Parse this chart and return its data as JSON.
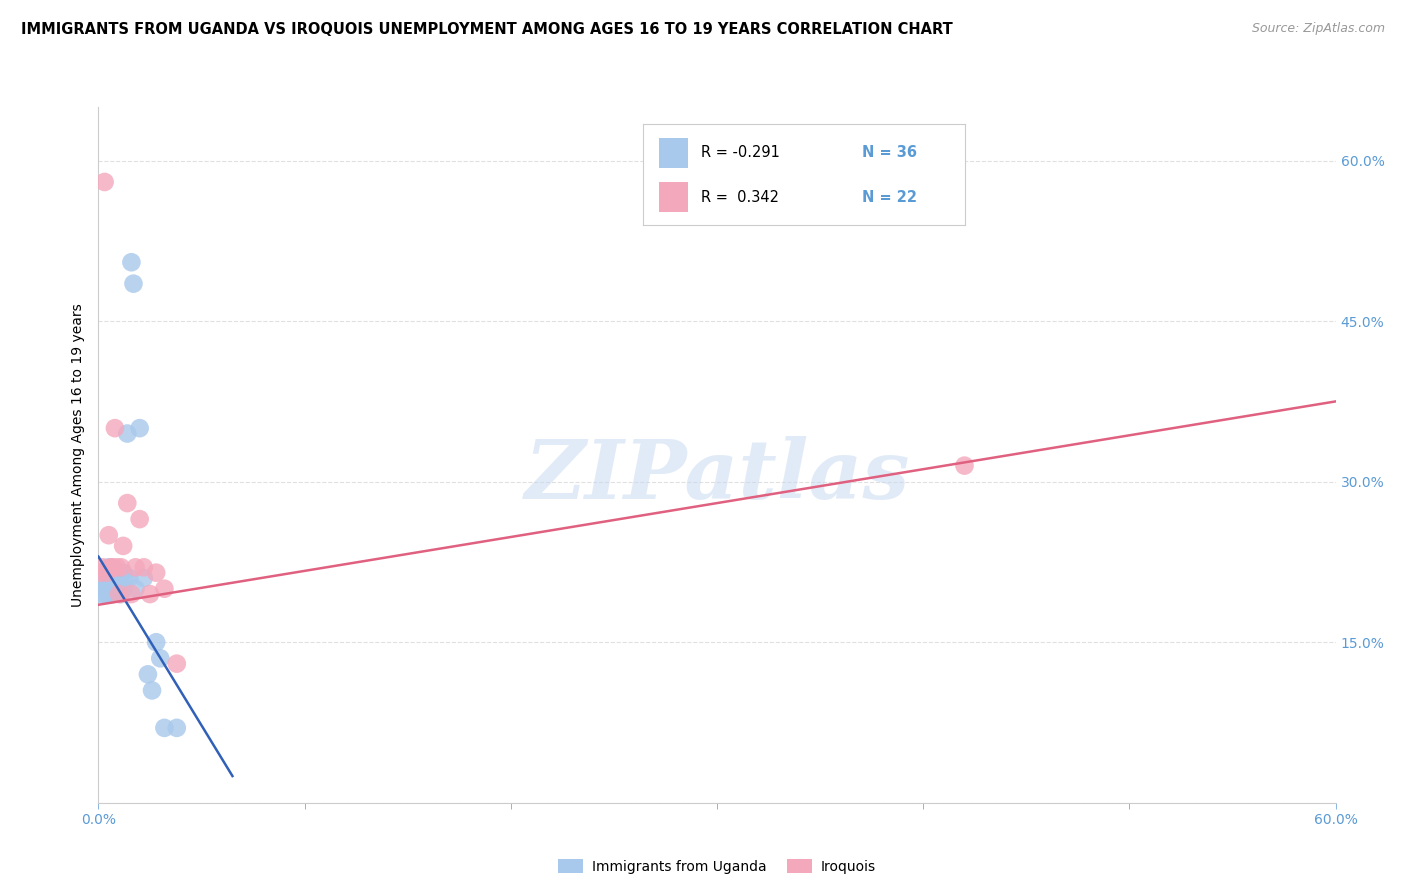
{
  "title": "IMMIGRANTS FROM UGANDA VS IROQUOIS UNEMPLOYMENT AMONG AGES 16 TO 19 YEARS CORRELATION CHART",
  "source": "Source: ZipAtlas.com",
  "ylabel": "Unemployment Among Ages 16 to 19 years",
  "xlim": [
    0.0,
    0.6
  ],
  "ylim": [
    0.0,
    0.65
  ],
  "xticks": [
    0.0,
    0.1,
    0.2,
    0.3,
    0.4,
    0.5,
    0.6
  ],
  "xticklabels": [
    "0.0%",
    "",
    "",
    "",
    "",
    "",
    "60.0%"
  ],
  "yticks": [
    0.0,
    0.15,
    0.3,
    0.45,
    0.6
  ],
  "ytick_labels_right": [
    "",
    "15.0%",
    "30.0%",
    "45.0%",
    "60.0%"
  ],
  "watermark": "ZIPatlas",
  "blue_color": "#A8C8EC",
  "pink_color": "#F4A8BC",
  "blue_line_color": "#3060B8",
  "pink_line_color": "#E06080",
  "legend_R_blue": "-0.291",
  "legend_N_blue": "36",
  "legend_R_pink": "0.342",
  "legend_N_pink": "22",
  "legend_label_blue": "Immigrants from Uganda",
  "legend_label_pink": "Iroquois",
  "blue_x": [
    0.001,
    0.001,
    0.002,
    0.002,
    0.003,
    0.003,
    0.004,
    0.004,
    0.005,
    0.005,
    0.006,
    0.006,
    0.007,
    0.007,
    0.008,
    0.009,
    0.009,
    0.01,
    0.01,
    0.011,
    0.012,
    0.012,
    0.013,
    0.014,
    0.015,
    0.016,
    0.017,
    0.018,
    0.02,
    0.022,
    0.024,
    0.026,
    0.028,
    0.03,
    0.032,
    0.038
  ],
  "blue_y": [
    0.205,
    0.195,
    0.215,
    0.2,
    0.21,
    0.195,
    0.215,
    0.2,
    0.22,
    0.195,
    0.21,
    0.2,
    0.215,
    0.195,
    0.215,
    0.205,
    0.21,
    0.2,
    0.215,
    0.195,
    0.215,
    0.2,
    0.21,
    0.345,
    0.21,
    0.505,
    0.485,
    0.2,
    0.35,
    0.21,
    0.12,
    0.105,
    0.15,
    0.135,
    0.07,
    0.07
  ],
  "pink_x": [
    0.001,
    0.002,
    0.003,
    0.004,
    0.005,
    0.006,
    0.007,
    0.008,
    0.009,
    0.01,
    0.011,
    0.012,
    0.014,
    0.016,
    0.018,
    0.02,
    0.022,
    0.025,
    0.028,
    0.032,
    0.42,
    0.038
  ],
  "pink_y": [
    0.215,
    0.22,
    0.58,
    0.215,
    0.25,
    0.22,
    0.22,
    0.35,
    0.22,
    0.195,
    0.22,
    0.24,
    0.28,
    0.195,
    0.22,
    0.265,
    0.22,
    0.195,
    0.215,
    0.2,
    0.315,
    0.13
  ],
  "blue_trend_x": [
    0.0,
    0.065
  ],
  "blue_trend_y": [
    0.23,
    0.025
  ],
  "pink_trend_x": [
    0.0,
    0.6
  ],
  "pink_trend_y": [
    0.185,
    0.375
  ],
  "grid_color": "#E0E0E0",
  "tick_color": "#5B9BD5",
  "background": "#FFFFFF"
}
